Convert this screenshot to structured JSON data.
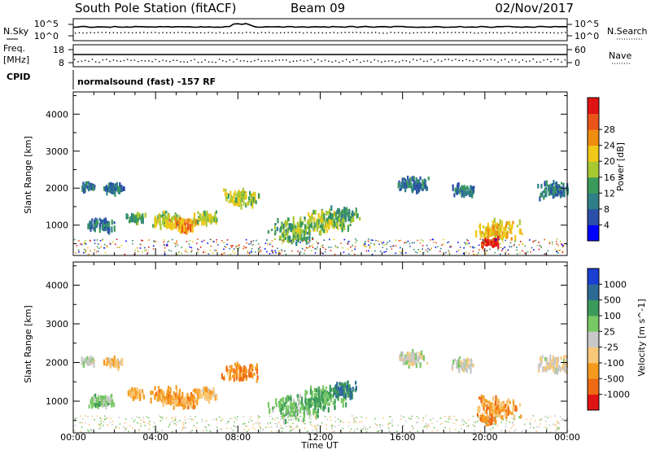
{
  "header": {
    "station": "South Pole Station (fitACF)",
    "beam": "Beam 09",
    "date": "02/Nov/2017"
  },
  "noise_panel": {
    "left_label": "N.Sky",
    "left_ticks": [
      "10^5",
      "10^0"
    ],
    "right_label": "N.Search",
    "right_ticks": [
      "10^5",
      "10^0"
    ]
  },
  "freq_panel": {
    "left_label_1": "Freq.",
    "left_label_2": "[MHz]",
    "left_ticks": [
      "18",
      "8"
    ],
    "right_label": "Nave",
    "right_ticks": [
      "60",
      "0"
    ]
  },
  "cpid": {
    "label": "CPID",
    "mode": "normalsound (fast) -157 RF"
  },
  "colors": {
    "power": [
      "#0000ff",
      "#2a4fa8",
      "#2e7f88",
      "#3c9a5a",
      "#a8c832",
      "#f0c818",
      "#f08c10",
      "#e8541a",
      "#e01414"
    ],
    "velocity": [
      "#e01414",
      "#ee6a14",
      "#f59a1e",
      "#f8c878",
      "#c8c8c8",
      "#78c864",
      "#3c9a5a",
      "#2e6a96",
      "#1a3fd2"
    ]
  },
  "chart_data": [
    {
      "type": "heatmap",
      "quantity": "Power",
      "ylabel": "Slant Range [km]",
      "yticks": [
        "1000",
        "2000",
        "3000",
        "4000"
      ],
      "ylim": [
        180,
        4600
      ],
      "colorbar": {
        "label": "Power [dB]",
        "ticks": [
          "4",
          "8",
          "12",
          "16",
          "20",
          "24",
          "28"
        ],
        "range": [
          0,
          30
        ]
      },
      "blobs": [
        {
          "t": 0.7,
          "r": 2100,
          "v": 8,
          "pad": 0.25
        },
        {
          "t": 1.9,
          "r": 2060,
          "v": 8,
          "pad": 0.35
        },
        {
          "t": 1.3,
          "r": 1050,
          "v": 8,
          "pad": 0.45
        },
        {
          "t": 3.0,
          "r": 1250,
          "v": 12,
          "pad": 0.3
        },
        {
          "t": 4.5,
          "r": 1200,
          "v": 16,
          "pad": 0.55
        },
        {
          "t": 5.3,
          "r": 1050,
          "v": 21,
          "pad": 0.5
        },
        {
          "t": 6.4,
          "r": 1250,
          "v": 16,
          "pad": 0.4
        },
        {
          "t": 8.1,
          "r": 1800,
          "v": 16,
          "pad": 0.6
        },
        {
          "t": 10.8,
          "r": 900,
          "v": 13,
          "pad": 0.9
        },
        {
          "t": 12.3,
          "r": 1150,
          "v": 15,
          "pad": 0.8
        },
        {
          "t": 13.1,
          "r": 1350,
          "v": 12,
          "pad": 0.5
        },
        {
          "t": 16.5,
          "r": 2150,
          "v": 8,
          "pad": 0.5
        },
        {
          "t": 18.9,
          "r": 2000,
          "v": 8,
          "pad": 0.4
        },
        {
          "t": 20.6,
          "r": 900,
          "v": 19,
          "pad": 0.75
        },
        {
          "t": 23.4,
          "r": 2000,
          "v": 8,
          "pad": 0.6
        },
        {
          "t": 20.2,
          "r": 600,
          "v": 28,
          "pad": 0.3
        }
      ]
    },
    {
      "type": "heatmap",
      "quantity": "Velocity",
      "xlabel": "Time UT",
      "xticks": [
        "00:00",
        "04:00",
        "08:00",
        "12:00",
        "16:00",
        "20:00",
        "00:00"
      ],
      "xlim": [
        0,
        24
      ],
      "ylabel": "Slant Range [km]",
      "yticks": [
        "1000",
        "2000",
        "3000",
        "4000"
      ],
      "ylim": [
        180,
        4600
      ],
      "colorbar": {
        "label": "Velocity [m s^-1]",
        "ticks": [
          "1000",
          "500",
          "100",
          "25",
          "-25",
          "-100",
          "-500",
          "-1000"
        ],
        "range": [
          -1200,
          1200
        ]
      },
      "blobs": [
        {
          "t": 0.7,
          "r": 2100,
          "v": 0,
          "pad": 0.25
        },
        {
          "t": 1.9,
          "r": 2060,
          "v": -300,
          "pad": 0.35
        },
        {
          "t": 1.3,
          "r": 1050,
          "v": 200,
          "pad": 0.45
        },
        {
          "t": 3.0,
          "r": 1250,
          "v": -400,
          "pad": 0.3
        },
        {
          "t": 4.5,
          "r": 1200,
          "v": -450,
          "pad": 0.55
        },
        {
          "t": 5.3,
          "r": 1050,
          "v": -500,
          "pad": 0.5
        },
        {
          "t": 6.4,
          "r": 1250,
          "v": -300,
          "pad": 0.4
        },
        {
          "t": 8.1,
          "r": 1800,
          "v": -600,
          "pad": 0.6
        },
        {
          "t": 10.8,
          "r": 900,
          "v": 300,
          "pad": 0.9
        },
        {
          "t": 12.3,
          "r": 1150,
          "v": 400,
          "pad": 0.8
        },
        {
          "t": 13.1,
          "r": 1350,
          "v": 700,
          "pad": 0.5
        },
        {
          "t": 16.5,
          "r": 2150,
          "v": 0,
          "pad": 0.5
        },
        {
          "t": 18.9,
          "r": 2000,
          "v": 0,
          "pad": 0.4
        },
        {
          "t": 20.6,
          "r": 900,
          "v": -500,
          "pad": 0.75
        },
        {
          "t": 23.4,
          "r": 2000,
          "v": -100,
          "pad": 0.6
        },
        {
          "t": 20.2,
          "r": 600,
          "v": -600,
          "pad": 0.3
        }
      ]
    }
  ]
}
